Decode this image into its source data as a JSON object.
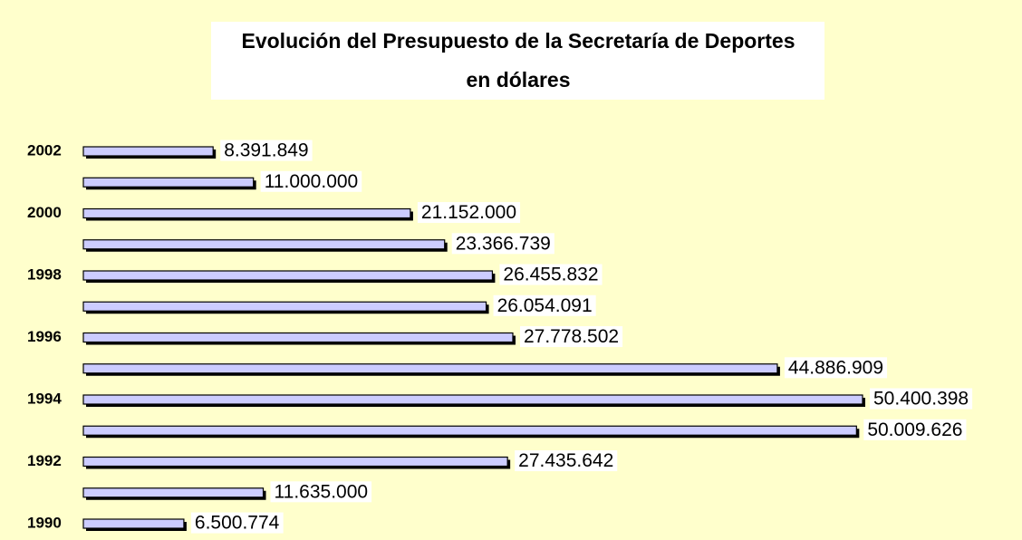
{
  "chart_data": {
    "type": "bar",
    "orientation": "horizontal",
    "title": "Evolución del Presupuesto de la Secretaría de Deportes",
    "subtitle": "en dólares",
    "categories": [
      "2002",
      null,
      "2000",
      null,
      "1998",
      null,
      "1996",
      null,
      "1994",
      null,
      "1992",
      null,
      "1990"
    ],
    "values": [
      8391849,
      11000000,
      21152000,
      23366739,
      26455832,
      26054091,
      27778502,
      44886909,
      50400398,
      50009626,
      27435642,
      11635000,
      6500774
    ],
    "value_labels": [
      "8.391.849",
      "11.000.000",
      "21.152.000",
      "23.366.739",
      "26.455.832",
      "26.054.091",
      "27.778.502",
      "44.886.909",
      "50.400.398",
      "50.009.626",
      "27.435.642",
      "11.635.000",
      "6.500.774"
    ],
    "color": "#ccccff"
  }
}
